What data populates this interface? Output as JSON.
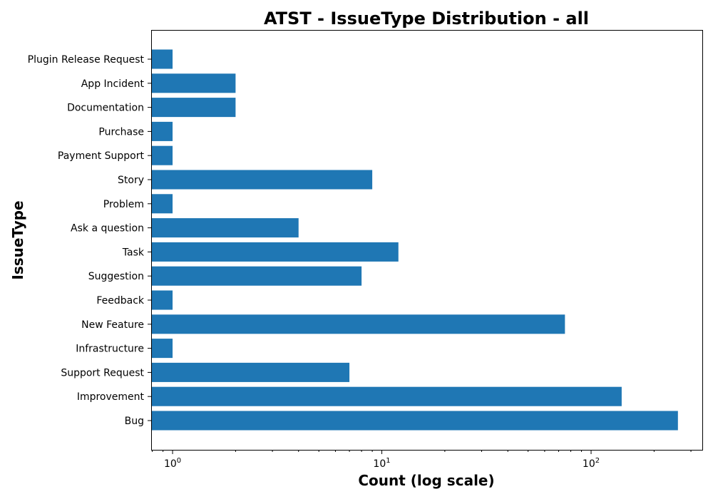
{
  "chart_data": {
    "type": "bar",
    "orientation": "horizontal",
    "title": "ATST - IssueType Distribution - all",
    "xlabel": "Count (log scale)",
    "ylabel": "IssueType",
    "xscale": "log",
    "xlim": [
      0.79,
      340
    ],
    "xticks": [
      {
        "value": 1,
        "base": "10",
        "exp": "0"
      },
      {
        "value": 10,
        "base": "10",
        "exp": "1"
      },
      {
        "value": 100,
        "base": "10",
        "exp": "2"
      }
    ],
    "bar_color": "#1f77b4",
    "grid": false,
    "categories": [
      "Bug",
      "Improvement",
      "Support Request",
      "Infrastructure",
      "New Feature",
      "Feedback",
      "Suggestion",
      "Task",
      "Ask a question",
      "Problem",
      "Story",
      "Payment Support",
      "Purchase",
      "Documentation",
      "App Incident",
      "Plugin Release Request"
    ],
    "values": [
      260,
      140,
      7,
      1,
      75,
      1,
      8,
      12,
      4,
      1,
      9,
      1,
      1,
      2,
      2,
      1
    ]
  }
}
